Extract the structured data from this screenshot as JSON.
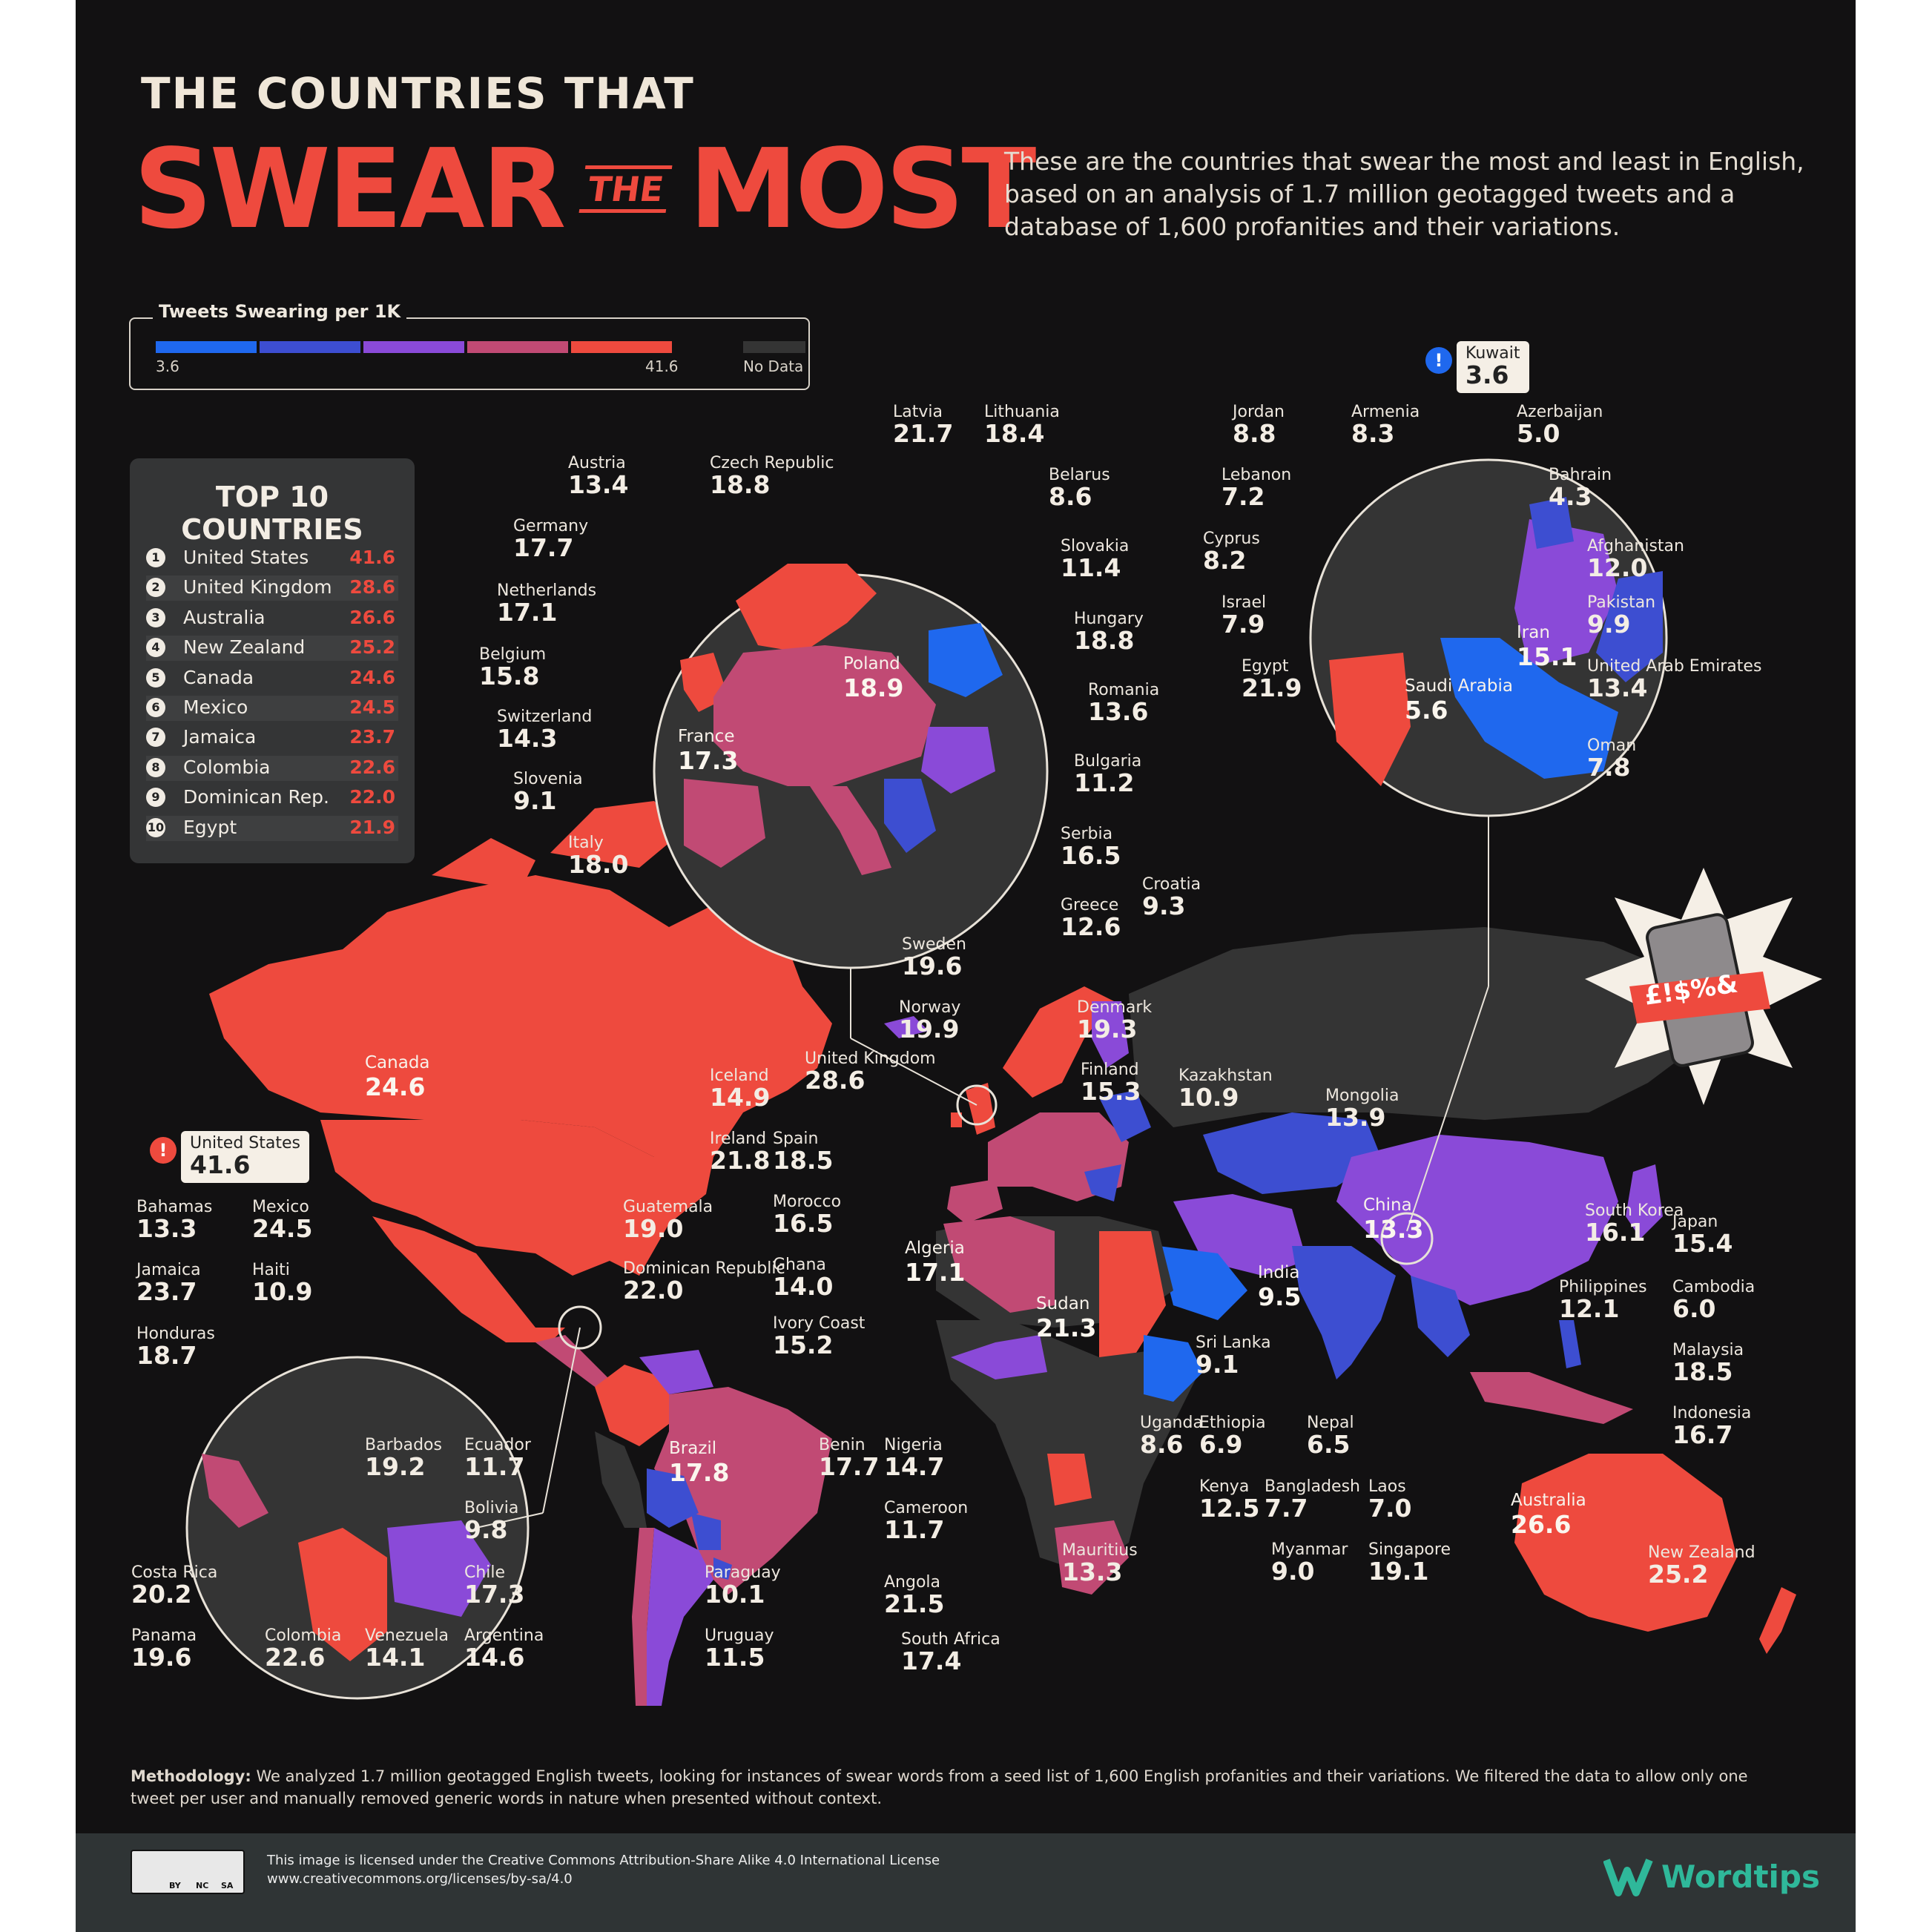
{
  "title": {
    "line1": "THE COUNTRIES THAT",
    "word1": "SWEAR",
    "word2": "THE",
    "word3": "MOST"
  },
  "intro": "These are the countries that swear the most and least in English, based on an analysis of 1.7 million geotagged tweets and a database of 1,600 profanities and their variations.",
  "legend": {
    "title": "Tweets Swearing per 1K",
    "min": "3.6",
    "max": "41.6",
    "no_data": "No Data",
    "colors": [
      "#1f68ee",
      "#3d4ed1",
      "#8a4ad8",
      "#c14a74",
      "#ee4a3e"
    ],
    "no_data_color": "#343434"
  },
  "top10": {
    "title": "TOP 10 COUNTRIES",
    "rows": [
      {
        "rank": "1",
        "name": "United States",
        "value": "41.6"
      },
      {
        "rank": "2",
        "name": "United Kingdom",
        "value": "28.6"
      },
      {
        "rank": "3",
        "name": "Australia",
        "value": "26.6"
      },
      {
        "rank": "4",
        "name": "New Zealand",
        "value": "25.2"
      },
      {
        "rank": "5",
        "name": "Canada",
        "value": "24.6"
      },
      {
        "rank": "6",
        "name": "Mexico",
        "value": "24.5"
      },
      {
        "rank": "7",
        "name": "Jamaica",
        "value": "23.7"
      },
      {
        "rank": "8",
        "name": "Colombia",
        "value": "22.6"
      },
      {
        "rank": "9",
        "name": "Dominican Rep.",
        "value": "22.0"
      },
      {
        "rank": "10",
        "name": "Egypt",
        "value": "21.9"
      }
    ]
  },
  "callouts": [
    {
      "name": "Latvia",
      "value": "21.7"
    },
    {
      "name": "Lithuania",
      "value": "18.4"
    },
    {
      "name": "Austria",
      "value": "13.4"
    },
    {
      "name": "Czech Republic",
      "value": "18.8"
    },
    {
      "name": "Belarus",
      "value": "8.6"
    },
    {
      "name": "Germany",
      "value": "17.7"
    },
    {
      "name": "Slovakia",
      "value": "11.4"
    },
    {
      "name": "Netherlands",
      "value": "17.1"
    },
    {
      "name": "Hungary",
      "value": "18.8"
    },
    {
      "name": "Belgium",
      "value": "15.8"
    },
    {
      "name": "Romania",
      "value": "13.6"
    },
    {
      "name": "Switzerland",
      "value": "14.3"
    },
    {
      "name": "Bulgaria",
      "value": "11.2"
    },
    {
      "name": "Slovenia",
      "value": "9.1"
    },
    {
      "name": "Serbia",
      "value": "16.5"
    },
    {
      "name": "Italy",
      "value": "18.0"
    },
    {
      "name": "Croatia",
      "value": "9.3"
    },
    {
      "name": "Greece",
      "value": "12.6"
    },
    {
      "name": "Jordan",
      "value": "8.8"
    },
    {
      "name": "Armenia",
      "value": "8.3"
    },
    {
      "name": "Azerbaijan",
      "value": "5.0"
    },
    {
      "name": "Lebanon",
      "value": "7.2"
    },
    {
      "name": "Bahrain",
      "value": "4.3"
    },
    {
      "name": "Cyprus",
      "value": "8.2"
    },
    {
      "name": "Afghanistan",
      "value": "12.0"
    },
    {
      "name": "Israel",
      "value": "7.9"
    },
    {
      "name": "Pakistan",
      "value": "9.9"
    },
    {
      "name": "Egypt",
      "value": "21.9"
    },
    {
      "name": "United Arab Emirates",
      "value": "13.4"
    },
    {
      "name": "Oman",
      "value": "7.8"
    },
    {
      "name": "Kuwait",
      "value": "3.6"
    },
    {
      "name": "Sweden",
      "value": "19.6"
    },
    {
      "name": "Norway",
      "value": "19.9"
    },
    {
      "name": "Denmark",
      "value": "19.3"
    },
    {
      "name": "Finland",
      "value": "15.3"
    },
    {
      "name": "Iceland",
      "value": "14.9"
    },
    {
      "name": "United Kingdom",
      "value": "28.6"
    },
    {
      "name": "Kazakhstan",
      "value": "10.9"
    },
    {
      "name": "Mongolia",
      "value": "13.9"
    },
    {
      "name": "Ireland",
      "value": "21.8"
    },
    {
      "name": "Spain",
      "value": "18.5"
    },
    {
      "name": "Morocco",
      "value": "16.5"
    },
    {
      "name": "Ghana",
      "value": "14.0"
    },
    {
      "name": "Ivory Coast",
      "value": "15.2"
    },
    {
      "name": "Benin",
      "value": "17.7"
    },
    {
      "name": "Nigeria",
      "value": "14.7"
    },
    {
      "name": "Cameroon",
      "value": "11.7"
    },
    {
      "name": "Angola",
      "value": "21.5"
    },
    {
      "name": "South Africa",
      "value": "17.4"
    },
    {
      "name": "Uganda",
      "value": "8.6"
    },
    {
      "name": "Ethiopia",
      "value": "6.9"
    },
    {
      "name": "Kenya",
      "value": "12.5"
    },
    {
      "name": "Mauritius",
      "value": "13.3"
    },
    {
      "name": "Sri Lanka",
      "value": "9.1"
    },
    {
      "name": "Nepal",
      "value": "6.5"
    },
    {
      "name": "Bangladesh",
      "value": "7.7"
    },
    {
      "name": "Laos",
      "value": "7.0"
    },
    {
      "name": "Myanmar",
      "value": "9.0"
    },
    {
      "name": "Singapore",
      "value": "19.1"
    },
    {
      "name": "South Korea",
      "value": "16.1"
    },
    {
      "name": "Japan",
      "value": "15.4"
    },
    {
      "name": "Philippines",
      "value": "12.1"
    },
    {
      "name": "Cambodia",
      "value": "6.0"
    },
    {
      "name": "Malaysia",
      "value": "18.5"
    },
    {
      "name": "Indonesia",
      "value": "16.7"
    },
    {
      "name": "New Zealand",
      "value": "25.2"
    },
    {
      "name": "United States",
      "value": "41.6"
    },
    {
      "name": "Bahamas",
      "value": "13.3"
    },
    {
      "name": "Mexico",
      "value": "24.5"
    },
    {
      "name": "Guatemala",
      "value": "19.0"
    },
    {
      "name": "Jamaica",
      "value": "23.7"
    },
    {
      "name": "Haiti",
      "value": "10.9"
    },
    {
      "name": "Dominican Republic",
      "value": "22.0"
    },
    {
      "name": "Honduras",
      "value": "18.7"
    },
    {
      "name": "Ecuador",
      "value": "11.7"
    },
    {
      "name": "Barbados",
      "value": "19.2"
    },
    {
      "name": "Bolivia",
      "value": "9.8"
    },
    {
      "name": "Chile",
      "value": "17.3"
    },
    {
      "name": "Paraguay",
      "value": "10.1"
    },
    {
      "name": "Costa Rica",
      "value": "20.2"
    },
    {
      "name": "Argentina",
      "value": "14.6"
    },
    {
      "name": "Uruguay",
      "value": "11.5"
    },
    {
      "name": "Panama",
      "value": "19.6"
    },
    {
      "name": "Colombia",
      "value": "22.6"
    },
    {
      "name": "Venezuela",
      "value": "14.1"
    }
  ],
  "map_labels": [
    {
      "name": "Canada",
      "value": "24.6"
    },
    {
      "name": "Brazil",
      "value": "17.8"
    },
    {
      "name": "Algeria",
      "value": "17.1"
    },
    {
      "name": "Sudan",
      "value": "21.3"
    },
    {
      "name": "China",
      "value": "13.3"
    },
    {
      "name": "India",
      "value": "9.5"
    },
    {
      "name": "Australia",
      "value": "26.6"
    },
    {
      "name": "Poland",
      "value": "18.9"
    },
    {
      "name": "France",
      "value": "17.3"
    },
    {
      "name": "Iran",
      "value": "15.1"
    },
    {
      "name": "Saudi Arabia",
      "value": "5.6"
    }
  ],
  "badge_glyph": "!",
  "sticker_text": "£!$%&",
  "methodology_label": "Methodology:",
  "methodology": "We analyzed 1.7 million geotagged English tweets, looking for instances of swear words from a seed list of 1,600 English profanities and their variations. We filtered the data to allow only one tweet per user and manually removed generic words in nature when presented without context.",
  "license_line1": "This image is licensed under the Creative Commons Attribution-Share Alike 4.0 International License",
  "license_line2": "www.creativecommons.org/licenses/by-sa/4.0",
  "cc_badges": [
    "BY",
    "NC",
    "SA"
  ],
  "brand": "Wordtips",
  "brand_color": "#2fb89a"
}
